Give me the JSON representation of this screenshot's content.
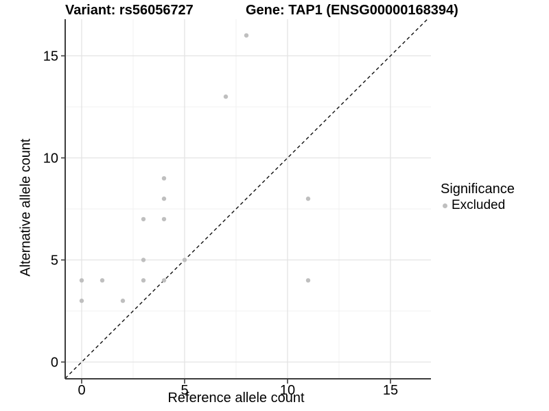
{
  "colors": {
    "background": "#ffffff",
    "point": "#bfbfbf",
    "axis_line": "#3c3c3c",
    "grid_major": "#e3e3e3",
    "grid_minor": "#f1f1f1",
    "reference_line": "#111111",
    "text": "#000000"
  },
  "chart_data": {
    "type": "scatter",
    "titles": {
      "left": "Variant: rs56056727",
      "right": "Gene: TAP1 (ENSG00000168394)"
    },
    "xlabel": "Reference allele count",
    "ylabel": "Alternative allele count",
    "x_ticks": [
      0,
      5,
      10,
      15
    ],
    "y_ticks": [
      0,
      5,
      10,
      15
    ],
    "minor_tick_positions": [
      2.5,
      7.5,
      12.5
    ],
    "xlim": [
      -0.8,
      17
    ],
    "ylim": [
      -0.8,
      16.8
    ],
    "grid": "major+minor on white panel, no top/right border",
    "legend": {
      "title": "Significance",
      "position": "right",
      "items": [
        {
          "label": "Excluded",
          "color": "#bfbfbf"
        }
      ]
    },
    "series": [
      {
        "name": "Excluded",
        "color": "#bfbfbf",
        "points": [
          [
            0,
            3
          ],
          [
            0,
            4
          ],
          [
            1,
            4
          ],
          [
            2,
            3
          ],
          [
            3,
            4
          ],
          [
            3,
            5
          ],
          [
            3,
            7
          ],
          [
            4,
            4
          ],
          [
            4,
            7
          ],
          [
            4,
            8
          ],
          [
            4,
            9
          ],
          [
            5,
            5
          ],
          [
            7,
            13
          ],
          [
            8,
            16
          ],
          [
            11,
            4
          ],
          [
            11,
            8
          ]
        ]
      }
    ],
    "reference_line": {
      "type": "identity y=x",
      "style": "dashed",
      "color": "#111111"
    }
  }
}
